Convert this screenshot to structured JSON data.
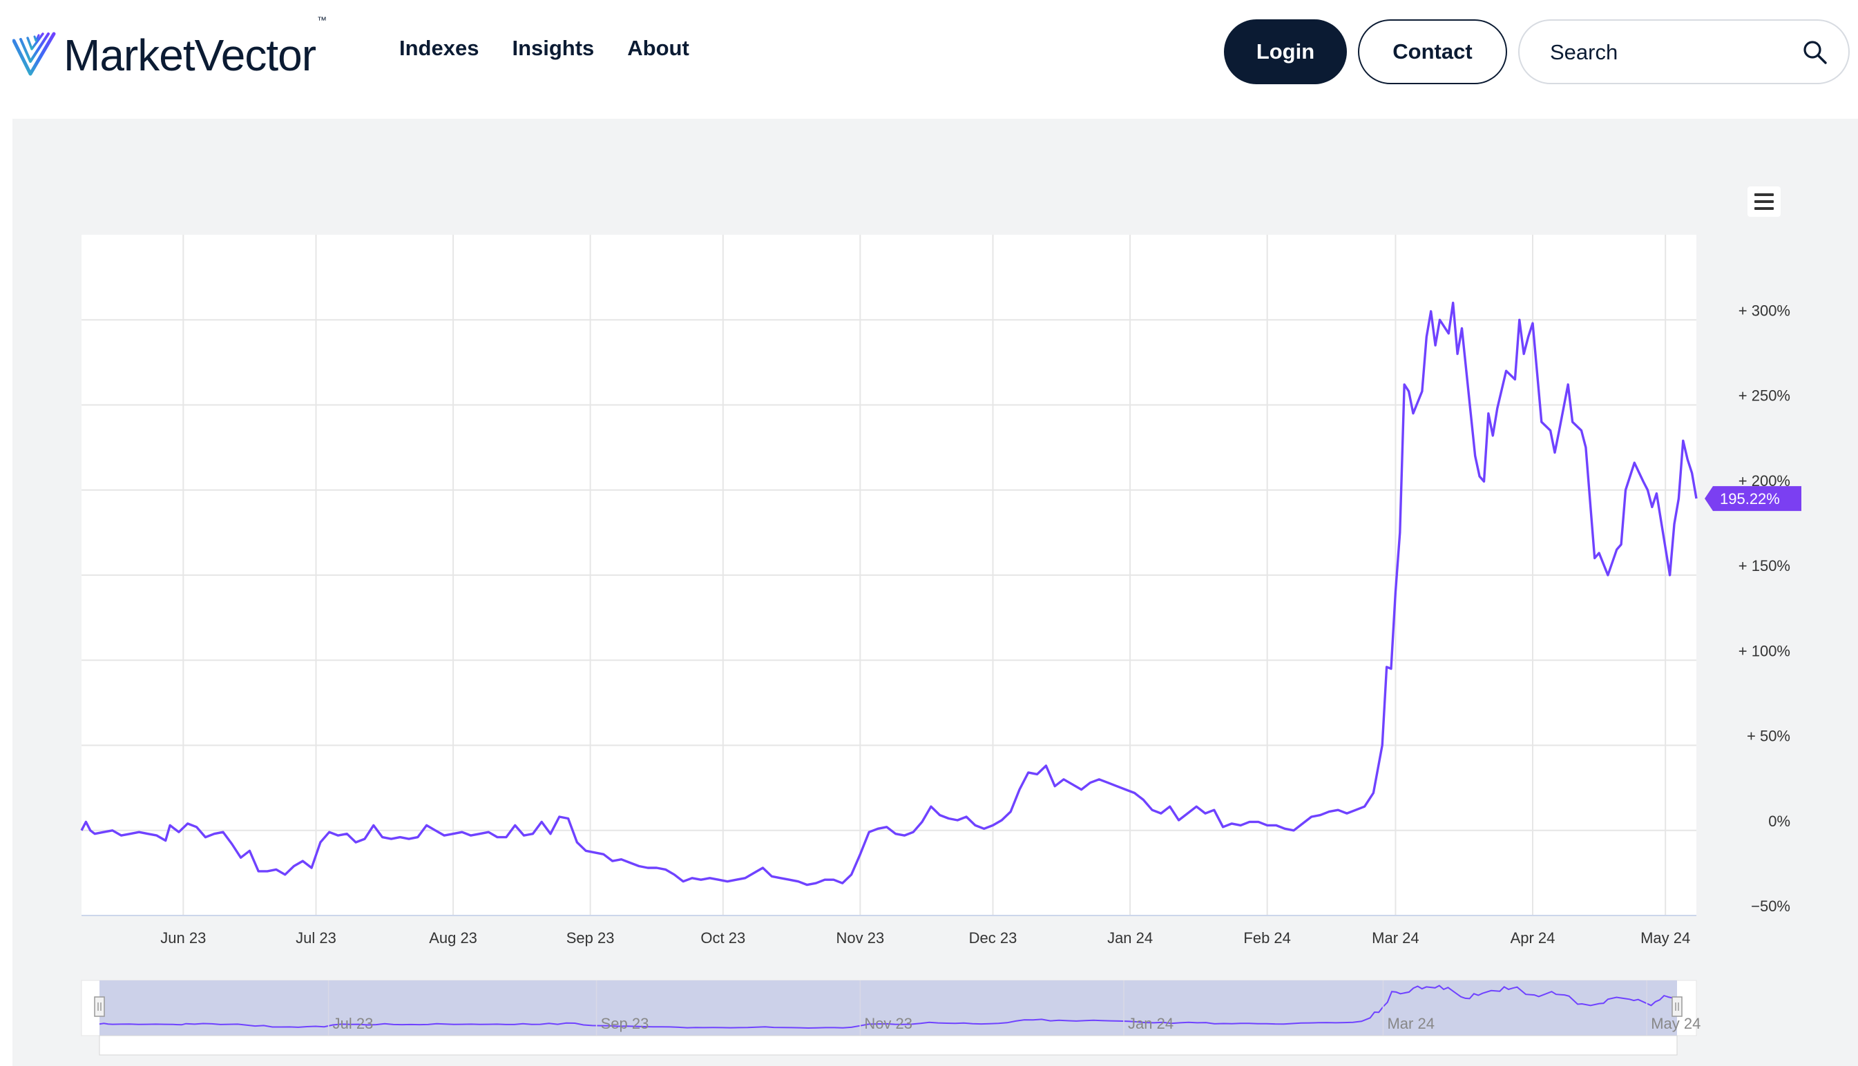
{
  "header": {
    "brand": "MarketVector",
    "brand_tm": "™",
    "nav": [
      "Indexes",
      "Insights",
      "About"
    ],
    "login_label": "Login",
    "contact_label": "Contact",
    "search_placeholder": "Search"
  },
  "icons": {
    "logo": "marketvector-logo-icon",
    "search": "search-icon",
    "menu": "hamburger-menu-icon"
  },
  "colors": {
    "series": "#6f42ff",
    "brand_dark": "#0b1b33",
    "logo_gradient": [
      "#2ec4b6",
      "#3b6ef5",
      "#6f42ff"
    ]
  },
  "chart_data": {
    "type": "line",
    "title": "",
    "xlabel": "",
    "ylabel": "",
    "y_tick_labels": [
      "−50%",
      "0%",
      "+ 50%",
      "+ 100%",
      "+ 150%",
      "+ 200%",
      "+ 250%",
      "+ 300%"
    ],
    "y_ticks": [
      -50,
      0,
      50,
      100,
      150,
      200,
      250,
      300
    ],
    "ylim": [
      -50,
      350
    ],
    "x_tick_labels": [
      "Jun 23",
      "Jul 23",
      "Aug 23",
      "Sep 23",
      "Oct 23",
      "Nov 23",
      "Dec 23",
      "Jan 24",
      "Feb 24",
      "Mar 24",
      "Apr 24",
      "May 24"
    ],
    "x_ticks": [
      "2023-06-01",
      "2023-07-01",
      "2023-08-01",
      "2023-09-01",
      "2023-10-01",
      "2023-11-01",
      "2023-12-01",
      "2024-01-01",
      "2024-02-01",
      "2024-03-01",
      "2024-04-01",
      "2024-05-01"
    ],
    "xlim": [
      "2023-05-09",
      "2024-05-08"
    ],
    "grid": true,
    "last_value_label": "195.22%",
    "navigator_labels": [
      "Jul 23",
      "Sep 23",
      "Nov 23",
      "Jan 24",
      "Mar 24",
      "May 24"
    ],
    "navigator_ticks": [
      "2023-07-01",
      "2023-09-01",
      "2023-11-01",
      "2024-01-01",
      "2024-03-01",
      "2024-05-01"
    ],
    "series": [
      {
        "points": [
          [
            "2023-05-09",
            0
          ],
          [
            "2023-05-10",
            5
          ],
          [
            "2023-05-11",
            0
          ],
          [
            "2023-05-12",
            -2
          ],
          [
            "2023-05-14",
            -1
          ],
          [
            "2023-05-16",
            0
          ],
          [
            "2023-05-18",
            -3
          ],
          [
            "2023-05-20",
            -2
          ],
          [
            "2023-05-22",
            -1
          ],
          [
            "2023-05-24",
            -2
          ],
          [
            "2023-05-26",
            -3
          ],
          [
            "2023-05-28",
            -6
          ],
          [
            "2023-05-29",
            3
          ],
          [
            "2023-05-31",
            -1
          ],
          [
            "2023-06-02",
            4
          ],
          [
            "2023-06-04",
            2
          ],
          [
            "2023-06-06",
            -4
          ],
          [
            "2023-06-08",
            -2
          ],
          [
            "2023-06-10",
            -1
          ],
          [
            "2023-06-12",
            -8
          ],
          [
            "2023-06-14",
            -16
          ],
          [
            "2023-06-16",
            -12
          ],
          [
            "2023-06-18",
            -24
          ],
          [
            "2023-06-20",
            -24
          ],
          [
            "2023-06-22",
            -23
          ],
          [
            "2023-06-24",
            -26
          ],
          [
            "2023-06-26",
            -21
          ],
          [
            "2023-06-28",
            -18
          ],
          [
            "2023-06-30",
            -22
          ],
          [
            "2023-07-02",
            -7
          ],
          [
            "2023-07-04",
            -1
          ],
          [
            "2023-07-06",
            -3
          ],
          [
            "2023-07-08",
            -2
          ],
          [
            "2023-07-10",
            -7
          ],
          [
            "2023-07-12",
            -5
          ],
          [
            "2023-07-14",
            3
          ],
          [
            "2023-07-16",
            -4
          ],
          [
            "2023-07-18",
            -5
          ],
          [
            "2023-07-20",
            -4
          ],
          [
            "2023-07-22",
            -5
          ],
          [
            "2023-07-24",
            -4
          ],
          [
            "2023-07-26",
            3
          ],
          [
            "2023-07-28",
            0
          ],
          [
            "2023-07-30",
            -3
          ],
          [
            "2023-08-01",
            -2
          ],
          [
            "2023-08-03",
            -1
          ],
          [
            "2023-08-05",
            -3
          ],
          [
            "2023-08-07",
            -2
          ],
          [
            "2023-08-09",
            -1
          ],
          [
            "2023-08-11",
            -4
          ],
          [
            "2023-08-13",
            -4
          ],
          [
            "2023-08-15",
            3
          ],
          [
            "2023-08-17",
            -3
          ],
          [
            "2023-08-19",
            -2
          ],
          [
            "2023-08-21",
            5
          ],
          [
            "2023-08-23",
            -2
          ],
          [
            "2023-08-25",
            8
          ],
          [
            "2023-08-27",
            7
          ],
          [
            "2023-08-29",
            -7
          ],
          [
            "2023-08-31",
            -12
          ],
          [
            "2023-09-02",
            -13
          ],
          [
            "2023-09-04",
            -14
          ],
          [
            "2023-09-06",
            -18
          ],
          [
            "2023-09-08",
            -17
          ],
          [
            "2023-09-10",
            -19
          ],
          [
            "2023-09-12",
            -21
          ],
          [
            "2023-09-14",
            -22
          ],
          [
            "2023-09-16",
            -22
          ],
          [
            "2023-09-18",
            -23
          ],
          [
            "2023-09-20",
            -26
          ],
          [
            "2023-09-22",
            -30
          ],
          [
            "2023-09-24",
            -28
          ],
          [
            "2023-09-26",
            -29
          ],
          [
            "2023-09-28",
            -28
          ],
          [
            "2023-09-30",
            -29
          ],
          [
            "2023-10-02",
            -30
          ],
          [
            "2023-10-04",
            -29
          ],
          [
            "2023-10-06",
            -28
          ],
          [
            "2023-10-08",
            -25
          ],
          [
            "2023-10-10",
            -22
          ],
          [
            "2023-10-12",
            -27
          ],
          [
            "2023-10-14",
            -28
          ],
          [
            "2023-10-16",
            -29
          ],
          [
            "2023-10-18",
            -30
          ],
          [
            "2023-10-20",
            -32
          ],
          [
            "2023-10-22",
            -31
          ],
          [
            "2023-10-24",
            -29
          ],
          [
            "2023-10-26",
            -29
          ],
          [
            "2023-10-28",
            -31
          ],
          [
            "2023-10-30",
            -26
          ],
          [
            "2023-11-01",
            -14
          ],
          [
            "2023-11-03",
            -1
          ],
          [
            "2023-11-05",
            1
          ],
          [
            "2023-11-07",
            2
          ],
          [
            "2023-11-09",
            -2
          ],
          [
            "2023-11-11",
            -3
          ],
          [
            "2023-11-13",
            -1
          ],
          [
            "2023-11-15",
            5
          ],
          [
            "2023-11-17",
            14
          ],
          [
            "2023-11-19",
            9
          ],
          [
            "2023-11-21",
            7
          ],
          [
            "2023-11-23",
            6
          ],
          [
            "2023-11-25",
            8
          ],
          [
            "2023-11-27",
            3
          ],
          [
            "2023-11-29",
            1
          ],
          [
            "2023-12-01",
            3
          ],
          [
            "2023-12-03",
            6
          ],
          [
            "2023-12-05",
            11
          ],
          [
            "2023-12-07",
            24
          ],
          [
            "2023-12-09",
            34
          ],
          [
            "2023-12-11",
            33
          ],
          [
            "2023-12-13",
            38
          ],
          [
            "2023-12-15",
            26
          ],
          [
            "2023-12-17",
            30
          ],
          [
            "2023-12-19",
            27
          ],
          [
            "2023-12-21",
            24
          ],
          [
            "2023-12-23",
            28
          ],
          [
            "2023-12-25",
            30
          ],
          [
            "2023-12-27",
            28
          ],
          [
            "2023-12-29",
            26
          ],
          [
            "2023-12-31",
            24
          ],
          [
            "2024-01-02",
            22
          ],
          [
            "2024-01-04",
            18
          ],
          [
            "2024-01-06",
            12
          ],
          [
            "2024-01-08",
            10
          ],
          [
            "2024-01-10",
            14
          ],
          [
            "2024-01-12",
            6
          ],
          [
            "2024-01-14",
            10
          ],
          [
            "2024-01-16",
            14
          ],
          [
            "2024-01-18",
            10
          ],
          [
            "2024-01-20",
            12
          ],
          [
            "2024-01-22",
            2
          ],
          [
            "2024-01-24",
            4
          ],
          [
            "2024-01-26",
            3
          ],
          [
            "2024-01-28",
            5
          ],
          [
            "2024-01-30",
            5
          ],
          [
            "2024-02-01",
            3
          ],
          [
            "2024-02-03",
            3
          ],
          [
            "2024-02-05",
            1
          ],
          [
            "2024-02-07",
            0
          ],
          [
            "2024-02-09",
            4
          ],
          [
            "2024-02-11",
            8
          ],
          [
            "2024-02-13",
            9
          ],
          [
            "2024-02-15",
            11
          ],
          [
            "2024-02-17",
            12
          ],
          [
            "2024-02-19",
            10
          ],
          [
            "2024-02-21",
            12
          ],
          [
            "2024-02-23",
            14
          ],
          [
            "2024-02-25",
            22
          ],
          [
            "2024-02-27",
            50
          ],
          [
            "2024-02-28",
            96
          ],
          [
            "2024-02-29",
            95
          ],
          [
            "2024-03-01",
            140
          ],
          [
            "2024-03-02",
            175
          ],
          [
            "2024-03-03",
            262
          ],
          [
            "2024-03-04",
            258
          ],
          [
            "2024-03-05",
            245
          ],
          [
            "2024-03-07",
            258
          ],
          [
            "2024-03-08",
            290
          ],
          [
            "2024-03-09",
            305
          ],
          [
            "2024-03-10",
            285
          ],
          [
            "2024-03-11",
            300
          ],
          [
            "2024-03-13",
            292
          ],
          [
            "2024-03-14",
            310
          ],
          [
            "2024-03-15",
            280
          ],
          [
            "2024-03-16",
            295
          ],
          [
            "2024-03-18",
            245
          ],
          [
            "2024-03-19",
            220
          ],
          [
            "2024-03-20",
            208
          ],
          [
            "2024-03-21",
            205
          ],
          [
            "2024-03-22",
            245
          ],
          [
            "2024-03-23",
            232
          ],
          [
            "2024-03-24",
            248
          ],
          [
            "2024-03-26",
            270
          ],
          [
            "2024-03-28",
            265
          ],
          [
            "2024-03-29",
            300
          ],
          [
            "2024-03-30",
            280
          ],
          [
            "2024-03-31",
            290
          ],
          [
            "2024-04-01",
            298
          ],
          [
            "2024-04-03",
            240
          ],
          [
            "2024-04-05",
            235
          ],
          [
            "2024-04-06",
            222
          ],
          [
            "2024-04-07",
            235
          ],
          [
            "2024-04-09",
            262
          ],
          [
            "2024-04-10",
            240
          ],
          [
            "2024-04-12",
            235
          ],
          [
            "2024-04-13",
            225
          ],
          [
            "2024-04-15",
            160
          ],
          [
            "2024-04-16",
            163
          ],
          [
            "2024-04-18",
            150
          ],
          [
            "2024-04-20",
            165
          ],
          [
            "2024-04-21",
            168
          ],
          [
            "2024-04-22",
            200
          ],
          [
            "2024-04-24",
            216
          ],
          [
            "2024-04-26",
            205
          ],
          [
            "2024-04-27",
            200
          ],
          [
            "2024-04-28",
            190
          ],
          [
            "2024-04-29",
            198
          ],
          [
            "2024-05-02",
            150
          ],
          [
            "2024-05-03",
            180
          ],
          [
            "2024-05-04",
            195
          ],
          [
            "2024-05-05",
            229
          ],
          [
            "2024-05-06",
            218
          ],
          [
            "2024-05-07",
            210
          ],
          [
            "2024-05-08",
            195
          ]
        ]
      }
    ]
  }
}
